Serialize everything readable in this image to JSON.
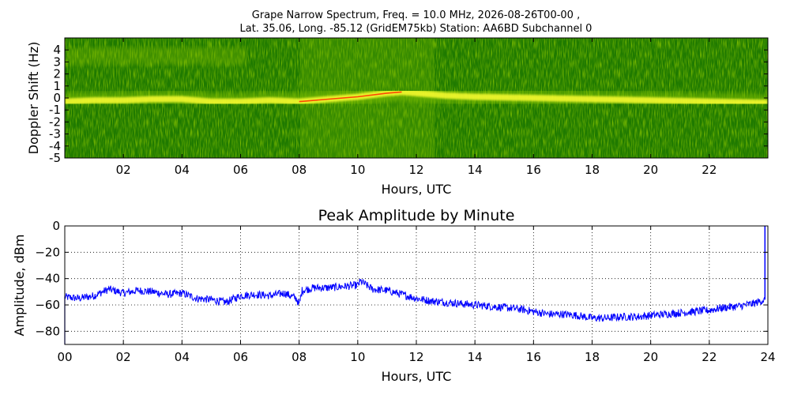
{
  "chart_data": [
    {
      "type": "heatmap",
      "title_line1": "Grape Narrow Spectrum, Freq. = 10.0 MHz, 2026-08-26T00-00 ,",
      "title_line2": "Lat.  35.06, Long. -85.12 (GridEM75kb) Station: AA6BD Subchannel 0",
      "xlabel": "Hours, UTC",
      "ylabel": "Doppler Shift (Hz)",
      "xlim": [
        0,
        24
      ],
      "ylim": [
        -5,
        5
      ],
      "x_ticks": [
        "02",
        "04",
        "06",
        "08",
        "10",
        "12",
        "14",
        "16",
        "18",
        "20",
        "22"
      ],
      "y_ticks": [
        "4",
        "3",
        "2",
        "1",
        "0",
        "-1",
        "-2",
        "-3",
        "-4",
        "-5"
      ],
      "colors": {
        "background": "#1f7a00",
        "mid": "#7fbf00",
        "band": "#ffff33",
        "peak": "#ff3300"
      },
      "ridge": {
        "hours": [
          0,
          1,
          2,
          3,
          4,
          5,
          6,
          7,
          8,
          9,
          10,
          11,
          11.5,
          12,
          12.5,
          13,
          14,
          16,
          18,
          20,
          22,
          24
        ],
        "doppler": [
          -0.3,
          -0.2,
          -0.2,
          -0.1,
          -0.1,
          -0.3,
          -0.3,
          -0.2,
          -0.3,
          -0.1,
          0.1,
          0.4,
          0.5,
          0.4,
          0.3,
          0.2,
          0.1,
          0.0,
          -0.1,
          -0.2,
          -0.3,
          -0.4
        ]
      }
    },
    {
      "type": "line",
      "title": "Peak Amplitude by Minute",
      "xlabel": "Hours, UTC",
      "ylabel": "Amplitude, dBm",
      "xlim": [
        0,
        24
      ],
      "ylim": [
        -90,
        0
      ],
      "grid": true,
      "x_ticks": [
        "00",
        "02",
        "04",
        "06",
        "08",
        "10",
        "12",
        "14",
        "16",
        "18",
        "20",
        "22",
        "24"
      ],
      "y_ticks": [
        "0",
        "−20",
        "−40",
        "−60",
        "−80"
      ],
      "series": [
        {
          "color": "#0000ff",
          "x": [
            0,
            0.5,
            1,
            1.5,
            2,
            2.5,
            3,
            3.5,
            4,
            4.5,
            5,
            5.5,
            6,
            6.5,
            7,
            7.5,
            7.9,
            8.0,
            8.1,
            8.5,
            9,
            9.5,
            10,
            10.1,
            10.5,
            11,
            11.5,
            12,
            12.5,
            13,
            13.5,
            14,
            14.5,
            15,
            15.5,
            16,
            16.5,
            17,
            17.5,
            18,
            18.5,
            19,
            19.5,
            20,
            20.5,
            21,
            21.5,
            22,
            22.5,
            23,
            23.5,
            23.9
          ],
          "y": [
            -54,
            -55,
            -53,
            -48,
            -51,
            -49,
            -50,
            -52,
            -51,
            -55,
            -56,
            -58,
            -53,
            -52,
            -53,
            -51,
            -55,
            -60,
            -49,
            -47,
            -47,
            -46,
            -45,
            -42,
            -48,
            -49,
            -52,
            -55,
            -57,
            -58,
            -59,
            -60,
            -61,
            -62,
            -63,
            -65,
            -67,
            -67,
            -68,
            -70,
            -70,
            -69,
            -69,
            -68,
            -67,
            -66,
            -65,
            -64,
            -62,
            -61,
            -59,
            -56
          ]
        }
      ]
    }
  ]
}
